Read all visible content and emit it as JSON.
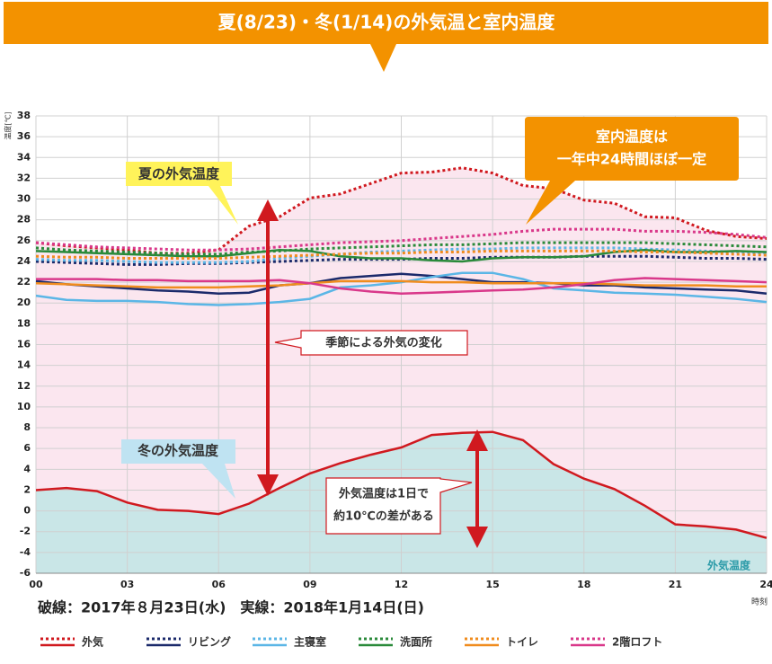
{
  "chart_data": {
    "type": "line",
    "title": "夏(8/23)・冬(1/14)の外気温と室内温度",
    "y_label": "温度[℃]",
    "x_label": "時刻",
    "caption": "破線：2017年８月23日(水)　実線：2018年1月14日(日)",
    "x": [
      0,
      1,
      2,
      3,
      4,
      5,
      6,
      7,
      8,
      9,
      10,
      11,
      12,
      13,
      14,
      15,
      16,
      17,
      18,
      19,
      20,
      21,
      22,
      23,
      24
    ],
    "xlim": [
      0,
      24
    ],
    "xticks": [
      {
        "value": 0,
        "label": "00"
      },
      {
        "value": 3,
        "label": "03"
      },
      {
        "value": 6,
        "label": "06"
      },
      {
        "value": 9,
        "label": "09"
      },
      12,
      15,
      18,
      21,
      24
    ],
    "ylim": [
      -6,
      38
    ],
    "yticks": [
      -6,
      -4,
      -2,
      0,
      2,
      4,
      6,
      8,
      10,
      12,
      14,
      16,
      18,
      20,
      22,
      24,
      26,
      28,
      30,
      32,
      34,
      36,
      38
    ],
    "grid": true,
    "annotations": {
      "summer": "夏の外気温度",
      "winter": "冬の外気温度",
      "indoor": [
        "室内温度は",
        "一年中24時間ほぼ一定"
      ],
      "season": "季節による外気の変化",
      "daily": [
        "外気温度は1日で",
        "約10℃の差がある"
      ],
      "outdoor": "外気温度"
    },
    "series": [
      {
        "name": "外気",
        "color": "#d0191f",
        "dashed_values": [
          25.8,
          25.5,
          25.3,
          25.1,
          24.8,
          24.8,
          25.1,
          27.4,
          28.3,
          30.1,
          30.5,
          31.5,
          32.5,
          32.6,
          33.0,
          32.5,
          31.3,
          31.0,
          29.9,
          29.6,
          28.3,
          28.2,
          27.0,
          26.4,
          26.2
        ],
        "solid_values": [
          2.0,
          2.2,
          1.9,
          0.8,
          0.1,
          0.0,
          -0.3,
          0.7,
          2.2,
          3.6,
          4.6,
          5.4,
          6.1,
          7.3,
          7.5,
          7.6,
          6.8,
          4.5,
          3.1,
          2.1,
          0.5,
          -1.3,
          -1.5,
          -1.8,
          -2.6
        ]
      },
      {
        "name": "リビング",
        "color": "#1b2a6b",
        "dashed_values": [
          24.0,
          23.9,
          23.8,
          23.7,
          23.7,
          23.8,
          23.8,
          23.9,
          24.0,
          24.1,
          24.2,
          24.2,
          24.2,
          24.3,
          24.3,
          24.4,
          24.4,
          24.4,
          24.5,
          24.5,
          24.5,
          24.4,
          24.3,
          24.3,
          24.2
        ],
        "solid_values": [
          22.1,
          21.8,
          21.6,
          21.4,
          21.2,
          21.1,
          20.9,
          21.0,
          21.7,
          21.9,
          22.4,
          22.6,
          22.8,
          22.6,
          22.3,
          22.0,
          22.0,
          21.9,
          21.7,
          21.7,
          21.5,
          21.4,
          21.3,
          21.2,
          20.9
        ]
      },
      {
        "name": "主寝室",
        "color": "#5bb6e6",
        "dashed_values": [
          24.2,
          24.1,
          24.1,
          24.0,
          23.9,
          23.9,
          23.9,
          24.0,
          24.3,
          24.5,
          24.7,
          24.9,
          25.0,
          25.1,
          25.2,
          25.2,
          25.3,
          25.3,
          25.3,
          25.3,
          25.2,
          25.1,
          25.0,
          24.9,
          24.8
        ],
        "solid_values": [
          20.7,
          20.3,
          20.2,
          20.2,
          20.1,
          19.9,
          19.8,
          19.9,
          20.1,
          20.4,
          21.5,
          21.7,
          22.0,
          22.5,
          22.9,
          22.9,
          22.3,
          21.4,
          21.2,
          21.0,
          20.9,
          20.8,
          20.6,
          20.4,
          20.1
        ]
      },
      {
        "name": "洗面所",
        "color": "#2a8a3a",
        "dashed_values": [
          25.3,
          25.1,
          25.0,
          24.9,
          24.8,
          24.7,
          24.7,
          24.9,
          25.0,
          25.2,
          25.3,
          25.4,
          25.5,
          25.6,
          25.6,
          25.7,
          25.8,
          25.8,
          25.8,
          25.8,
          25.8,
          25.7,
          25.6,
          25.5,
          25.4
        ],
        "solid_values": [
          25.0,
          24.9,
          24.8,
          24.7,
          24.6,
          24.5,
          24.5,
          24.8,
          25.1,
          25.0,
          24.5,
          24.3,
          24.3,
          24.1,
          24.0,
          24.3,
          24.4,
          24.4,
          24.5,
          24.9,
          25.1,
          24.9,
          24.9,
          25.0,
          24.9
        ]
      },
      {
        "name": "トイレ",
        "color": "#f08c1e",
        "dashed_values": [
          24.5,
          24.4,
          24.4,
          24.3,
          24.3,
          24.3,
          24.3,
          24.4,
          24.5,
          24.6,
          24.7,
          24.8,
          24.8,
          24.9,
          24.9,
          25.0,
          25.0,
          25.0,
          25.0,
          25.0,
          24.9,
          24.9,
          24.8,
          24.7,
          24.6
        ],
        "solid_values": [
          21.9,
          21.8,
          21.7,
          21.6,
          21.5,
          21.5,
          21.5,
          21.6,
          21.7,
          21.9,
          22.1,
          22.1,
          22.1,
          22.0,
          22.0,
          21.9,
          21.9,
          21.9,
          21.9,
          21.8,
          21.7,
          21.7,
          21.7,
          21.6,
          21.6
        ]
      },
      {
        "name": "2階ロフト",
        "color": "#d9388a",
        "dashed_values": [
          25.8,
          25.6,
          25.4,
          25.3,
          25.2,
          25.1,
          25.1,
          25.2,
          25.4,
          25.6,
          25.8,
          25.9,
          26.0,
          26.2,
          26.4,
          26.6,
          26.9,
          27.1,
          27.1,
          27.1,
          26.9,
          26.9,
          26.8,
          26.6,
          26.3
        ],
        "solid_values": [
          22.3,
          22.3,
          22.3,
          22.2,
          22.2,
          22.1,
          22.1,
          22.1,
          22.2,
          21.9,
          21.4,
          21.1,
          20.9,
          21.0,
          21.1,
          21.2,
          21.3,
          21.5,
          21.8,
          22.2,
          22.4,
          22.3,
          22.2,
          22.1,
          22.0
        ]
      }
    ]
  }
}
